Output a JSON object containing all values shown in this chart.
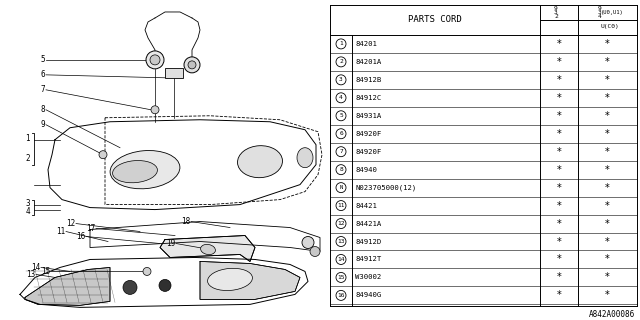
{
  "bg_color": "#ffffff",
  "rows": [
    [
      "1",
      "84201",
      "*",
      "*"
    ],
    [
      "2",
      "84201A",
      "*",
      "*"
    ],
    [
      "3",
      "84912B",
      "*",
      "*"
    ],
    [
      "4",
      "84912C",
      "*",
      "*"
    ],
    [
      "5",
      "84931A",
      "*",
      "*"
    ],
    [
      "6",
      "84920F",
      "*",
      "*"
    ],
    [
      "7",
      "84920F",
      "*",
      "*"
    ],
    [
      "8",
      "84940",
      "*",
      "*"
    ],
    [
      "9",
      "N023705000(12)",
      "*",
      "*"
    ],
    [
      "11",
      "84421",
      "*",
      "*"
    ],
    [
      "12",
      "84421A",
      "*",
      "*"
    ],
    [
      "13",
      "84912D",
      "*",
      "*"
    ],
    [
      "14",
      "84912T",
      "*",
      "*"
    ],
    [
      "15",
      "W30002",
      "*",
      "*"
    ],
    [
      "16",
      "84940G",
      "*",
      "*"
    ]
  ],
  "footer_text": "A842A00086"
}
